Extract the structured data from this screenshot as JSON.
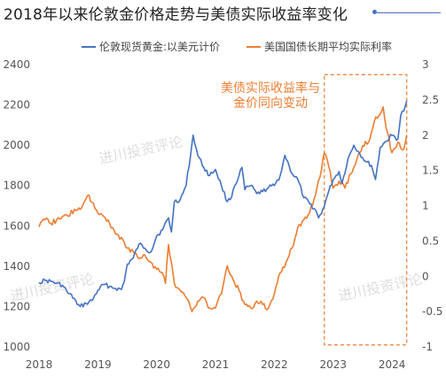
{
  "title": "2018年以来伦敦金价格走势与美债实际收益率变化",
  "colors": {
    "gold": "#4472C4",
    "rate": "#ED7D31",
    "box": "#ED7D31",
    "title_rule": "#4472C4",
    "annotation": "#ED7D31",
    "watermark": "#d0d0d0"
  },
  "watermark": "进川投资评论",
  "annotation": {
    "line1": "美债实际收益率与",
    "line2": "金价同向变动"
  },
  "chart_data": {
    "type": "line",
    "title": "2018年以来伦敦金价格走势与美债实际收益率变化",
    "legend_position": "top",
    "grid": false,
    "x_ticks": [
      "2018",
      "2019",
      "2020",
      "2021",
      "2022",
      "2023",
      "2024"
    ],
    "x_range": [
      2018.0,
      2024.3
    ],
    "y_left": {
      "ticks": [
        "2400",
        "2200",
        "2000",
        "1800",
        "1600",
        "1400",
        "1200",
        "1000"
      ],
      "range": [
        1000,
        2400
      ]
    },
    "y_right": {
      "ticks": [
        "3",
        "2.5",
        "2",
        "1.5",
        "1",
        "0.5",
        "0",
        "-0.5",
        "-1"
      ],
      "range": [
        -1,
        3
      ]
    },
    "highlight_range": {
      "x": [
        2022.85,
        2024.25
      ],
      "y_left": [
        1010,
        2350
      ]
    },
    "series": [
      {
        "name": "伦敦现货黄金:以美元计价",
        "axis": "left",
        "color": "#4472C4",
        "x": [
          2018.0,
          2018.1,
          2018.2,
          2018.3,
          2018.4,
          2018.5,
          2018.6,
          2018.65,
          2018.7,
          2018.8,
          2018.9,
          2019.0,
          2019.1,
          2019.2,
          2019.3,
          2019.4,
          2019.45,
          2019.5,
          2019.6,
          2019.7,
          2019.8,
          2019.9,
          2020.0,
          2020.1,
          2020.2,
          2020.25,
          2020.3,
          2020.4,
          2020.5,
          2020.58,
          2020.62,
          2020.7,
          2020.8,
          2020.9,
          2021.0,
          2021.1,
          2021.2,
          2021.25,
          2021.3,
          2021.4,
          2021.45,
          2021.5,
          2021.6,
          2021.7,
          2021.8,
          2021.9,
          2022.0,
          2022.1,
          2022.18,
          2022.25,
          2022.3,
          2022.4,
          2022.5,
          2022.6,
          2022.7,
          2022.75,
          2022.8,
          2022.9,
          2023.0,
          2023.1,
          2023.15,
          2023.25,
          2023.35,
          2023.45,
          2023.55,
          2023.65,
          2023.72,
          2023.8,
          2023.9,
          2024.0,
          2024.1,
          2024.15,
          2024.2,
          2024.25
        ],
        "y": [
          1320,
          1330,
          1325,
          1315,
          1305,
          1265,
          1240,
          1210,
          1200,
          1215,
          1230,
          1280,
          1310,
          1300,
          1290,
          1285,
          1325,
          1410,
          1440,
          1510,
          1490,
          1470,
          1550,
          1580,
          1640,
          1570,
          1720,
          1730,
          1800,
          1960,
          2050,
          1950,
          1890,
          1850,
          1880,
          1800,
          1720,
          1730,
          1780,
          1850,
          1890,
          1780,
          1800,
          1760,
          1770,
          1790,
          1800,
          1850,
          1950,
          1900,
          1860,
          1830,
          1740,
          1710,
          1680,
          1640,
          1660,
          1750,
          1830,
          1870,
          1810,
          1930,
          2000,
          1960,
          1920,
          1900,
          1830,
          1990,
          2020,
          2050,
          2030,
          2150,
          2170,
          2220
        ]
      },
      {
        "name": "美国国债长期平均实际利率",
        "axis": "right",
        "color": "#ED7D31",
        "x": [
          2018.0,
          2018.1,
          2018.2,
          2018.3,
          2018.4,
          2018.5,
          2018.6,
          2018.7,
          2018.8,
          2018.85,
          2018.9,
          2019.0,
          2019.1,
          2019.2,
          2019.3,
          2019.4,
          2019.5,
          2019.6,
          2019.7,
          2019.8,
          2019.9,
          2020.0,
          2020.1,
          2020.15,
          2020.2,
          2020.25,
          2020.3,
          2020.4,
          2020.5,
          2020.6,
          2020.7,
          2020.8,
          2020.9,
          2021.0,
          2021.1,
          2021.2,
          2021.3,
          2021.4,
          2021.5,
          2021.6,
          2021.7,
          2021.8,
          2021.9,
          2022.0,
          2022.1,
          2022.2,
          2022.3,
          2022.4,
          2022.5,
          2022.6,
          2022.7,
          2022.8,
          2022.85,
          2022.9,
          2023.0,
          2023.1,
          2023.2,
          2023.3,
          2023.4,
          2023.5,
          2023.6,
          2023.7,
          2023.8,
          2023.85,
          2023.9,
          2024.0,
          2024.1,
          2024.2,
          2024.25
        ],
        "y": [
          0.7,
          0.8,
          0.75,
          0.8,
          0.85,
          0.85,
          0.95,
          0.95,
          1.1,
          1.15,
          1.05,
          0.9,
          0.85,
          0.75,
          0.6,
          0.55,
          0.4,
          0.35,
          0.25,
          0.3,
          0.2,
          0.1,
          0.05,
          -0.1,
          0.45,
          0.2,
          -0.1,
          -0.2,
          -0.3,
          -0.5,
          -0.35,
          -0.3,
          -0.45,
          -0.45,
          -0.25,
          0.15,
          -0.05,
          -0.2,
          -0.4,
          -0.45,
          -0.35,
          -0.4,
          -0.45,
          -0.25,
          0.05,
          0.2,
          0.4,
          0.7,
          0.8,
          0.9,
          1.15,
          1.5,
          1.75,
          1.65,
          1.25,
          1.35,
          1.25,
          1.45,
          1.65,
          1.85,
          1.9,
          2.2,
          2.3,
          2.4,
          2.1,
          1.75,
          1.9,
          1.8,
          2.0
        ]
      }
    ]
  }
}
